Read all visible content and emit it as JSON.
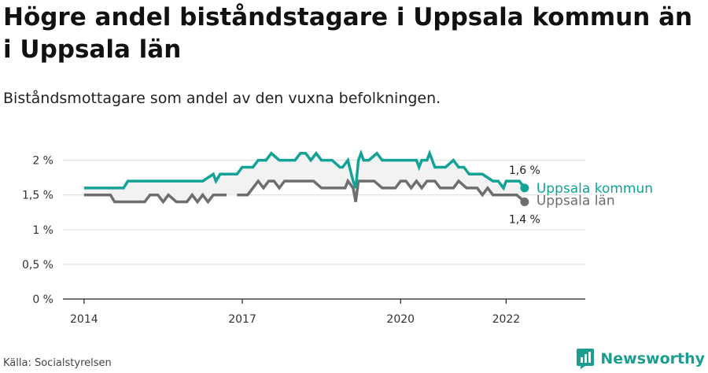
{
  "title": "Högre andel biståndstagare i Uppsala kommun än i Uppsala län",
  "subtitle": "Biståndsmottagare som andel av den vuxna befolkningen.",
  "source": "Källa: Socialstyrelsen",
  "brand": "Newsworthy",
  "colors": {
    "kommun": "#12a396",
    "lan": "#6e6e6e",
    "fill": "#f2f2f2",
    "grid": "#d9d9d9",
    "brand": "#1a9e8f"
  },
  "chart_data": {
    "type": "line",
    "y_ticks": [
      "2 %",
      "1,5 %",
      "1 %",
      "0,5 %",
      "0 %"
    ],
    "y_tick_values": [
      2,
      1.5,
      1,
      0.5,
      0
    ],
    "ylim": [
      0,
      2.2
    ],
    "x_ticks": [
      "2014",
      "2017",
      "2020",
      "2022"
    ],
    "x_tick_values": [
      2014,
      2017,
      2020,
      2022
    ],
    "xlim": [
      2013.6,
      2023.5
    ],
    "grid": true,
    "series": [
      {
        "name": "Uppsala kommun",
        "color_key": "kommun",
        "end_label": "1,6 %",
        "x": [
          2014.0,
          2014.25,
          2014.5,
          2014.75,
          2014.83,
          2015.0,
          2015.25,
          2015.5,
          2015.75,
          2016.0,
          2016.25,
          2016.45,
          2016.5,
          2016.58,
          2016.7,
          2016.9,
          2017.0,
          2017.2,
          2017.3,
          2017.45,
          2017.55,
          2017.7,
          2017.85,
          2018.0,
          2018.1,
          2018.2,
          2018.3,
          2018.4,
          2018.5,
          2018.7,
          2018.85,
          2018.9,
          2019.0,
          2019.1,
          2019.15,
          2019.2,
          2019.25,
          2019.3,
          2019.4,
          2019.55,
          2019.65,
          2019.75,
          2019.9,
          2020.0,
          2020.1,
          2020.3,
          2020.35,
          2020.4,
          2020.5,
          2020.55,
          2020.65,
          2020.7,
          2020.85,
          2021.0,
          2021.1,
          2021.2,
          2021.3,
          2021.45,
          2021.55,
          2021.75,
          2021.85,
          2021.95,
          2022.0,
          2022.1,
          2022.25,
          2022.35
        ],
        "y": [
          1.6,
          1.6,
          1.6,
          1.6,
          1.7,
          1.7,
          1.7,
          1.7,
          1.7,
          1.7,
          1.7,
          1.8,
          1.7,
          1.8,
          1.8,
          1.8,
          1.9,
          1.9,
          2.0,
          2.0,
          2.1,
          2.0,
          2.0,
          2.0,
          2.1,
          2.1,
          2.0,
          2.1,
          2.0,
          2.0,
          1.9,
          1.9,
          2.0,
          1.7,
          1.6,
          2.0,
          2.1,
          2.0,
          2.0,
          2.1,
          2.0,
          2.0,
          2.0,
          2.0,
          2.0,
          2.0,
          1.9,
          2.0,
          2.0,
          2.1,
          1.9,
          1.9,
          1.9,
          2.0,
          1.9,
          1.9,
          1.8,
          1.8,
          1.8,
          1.7,
          1.7,
          1.6,
          1.7,
          1.7,
          1.7,
          1.6
        ]
      },
      {
        "name": "Uppsala län",
        "color_key": "lan",
        "end_label": "1,4 %",
        "x": [
          2014.0,
          2014.25,
          2014.5,
          2014.58,
          2014.75,
          2015.0,
          2015.15,
          2015.25,
          2015.4,
          2015.5,
          2015.6,
          2015.75,
          2015.95,
          2016.05,
          2016.15,
          2016.25,
          2016.35,
          2016.45,
          2016.6,
          2016.7,
          2016.8,
          2016.9,
          2017.0,
          2017.1,
          2017.2,
          2017.3,
          2017.4,
          2017.5,
          2017.6,
          2017.7,
          2017.8,
          2018.0,
          2018.2,
          2018.35,
          2018.5,
          2018.7,
          2018.85,
          2018.95,
          2019.0,
          2019.1,
          2019.15,
          2019.2,
          2019.3,
          2019.5,
          2019.65,
          2019.75,
          2019.9,
          2020.0,
          2020.1,
          2020.2,
          2020.3,
          2020.4,
          2020.5,
          2020.65,
          2020.75,
          2020.9,
          2021.0,
          2021.1,
          2021.25,
          2021.45,
          2021.55,
          2021.65,
          2021.75,
          2021.85,
          2022.0,
          2022.2,
          2022.35
        ],
        "y": [
          1.5,
          1.5,
          1.5,
          1.4,
          1.4,
          1.4,
          1.4,
          1.5,
          1.5,
          1.4,
          1.5,
          1.4,
          1.4,
          1.5,
          1.4,
          1.5,
          1.4,
          1.5,
          1.5,
          1.5,
          null,
          1.5,
          1.5,
          1.5,
          1.6,
          1.7,
          1.6,
          1.7,
          1.7,
          1.6,
          1.7,
          1.7,
          1.7,
          1.7,
          1.6,
          1.6,
          1.6,
          1.6,
          1.7,
          1.6,
          1.4,
          1.7,
          1.7,
          1.7,
          1.6,
          1.6,
          1.6,
          1.7,
          1.7,
          1.6,
          1.7,
          1.6,
          1.7,
          1.7,
          1.6,
          1.6,
          1.6,
          1.7,
          1.6,
          1.6,
          1.5,
          1.6,
          1.5,
          1.5,
          1.5,
          1.5,
          1.4
        ]
      }
    ]
  }
}
